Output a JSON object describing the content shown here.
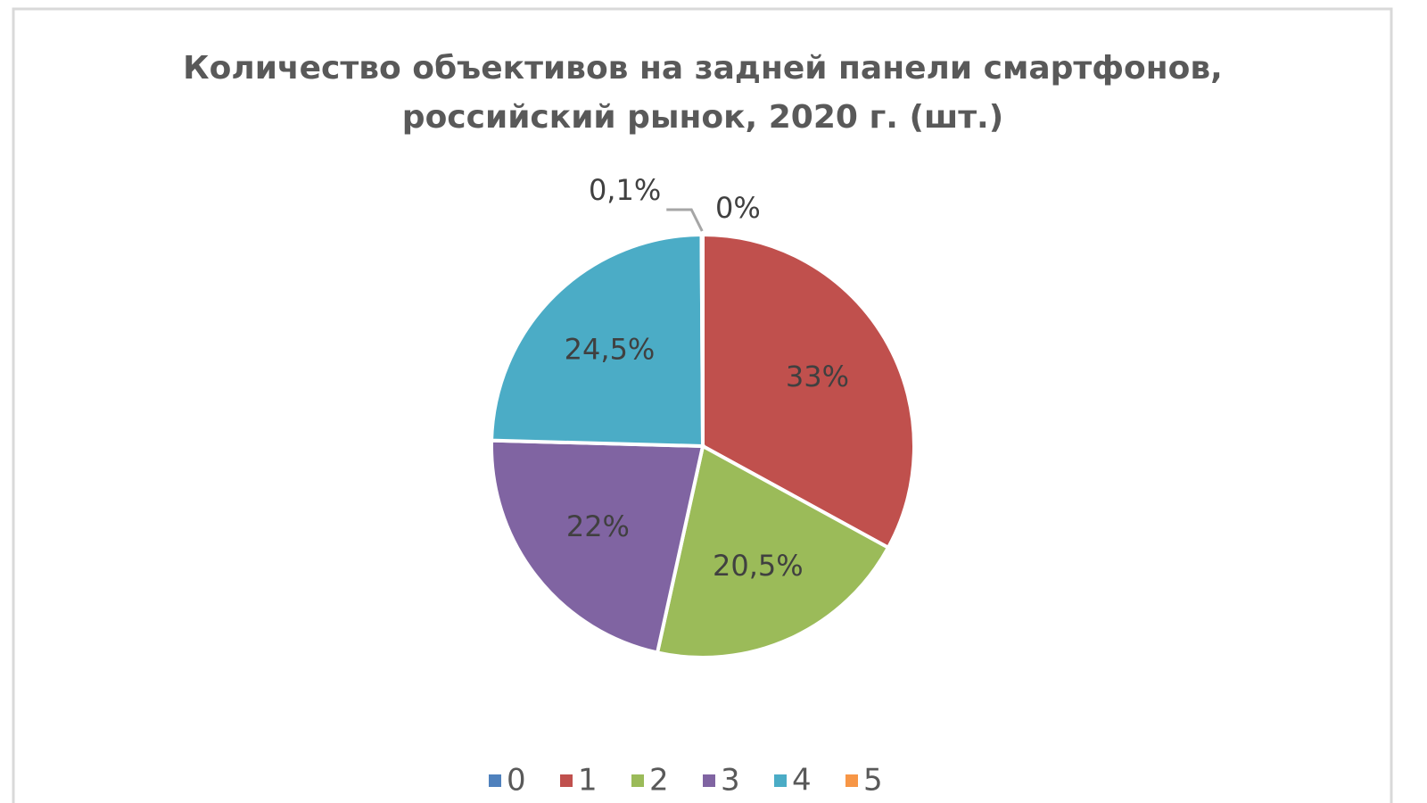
{
  "chart_data": {
    "type": "pie",
    "title": [
      "Количество объективов на задней панели смартфонов,",
      "российский рынок, 2020 г. (шт.)"
    ],
    "categories": [
      "0",
      "1",
      "2",
      "3",
      "4",
      "5"
    ],
    "values": [
      0,
      33,
      20.5,
      22,
      24.5,
      0.1
    ],
    "value_labels": [
      "0%",
      "33%",
      "20,5%",
      "22%",
      "24,5%",
      "0,1%"
    ],
    "colors": [
      "#4f81bd",
      "#c0504d",
      "#9bbb59",
      "#8064a2",
      "#4bacc6",
      "#f79646"
    ],
    "legend": "bottom"
  }
}
